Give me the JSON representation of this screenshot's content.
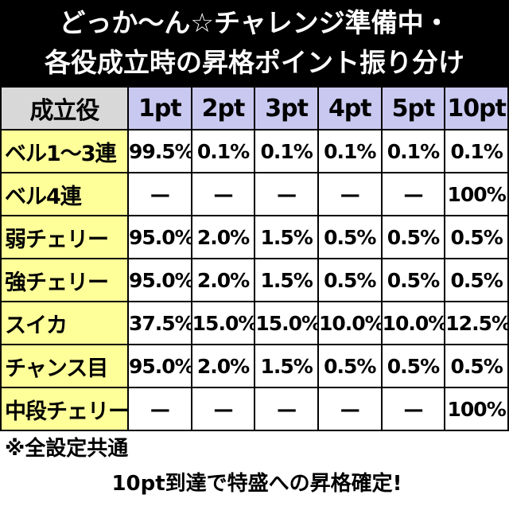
{
  "header": {
    "title_lines": [
      "どっか〜ん☆チャレンジ準備中・",
      "各役成立時の昇格ポイント振り分け"
    ]
  },
  "table": {
    "columns": [
      "成立役",
      "1pt",
      "2pt",
      "3pt",
      "4pt",
      "5pt",
      "10pt"
    ],
    "rows": [
      [
        "ベル1〜3連",
        "99.5%",
        "0.1%",
        "0.1%",
        "0.1%",
        "0.1%",
        "0.1%"
      ],
      [
        "ベル4連",
        "—",
        "—",
        "—",
        "—",
        "—",
        "100%"
      ],
      [
        "弱チェリー",
        "95.0%",
        "2.0%",
        "1.5%",
        "0.5%",
        "0.5%",
        "0.5%"
      ],
      [
        "強チェリー",
        "95.0%",
        "2.0%",
        "1.5%",
        "0.5%",
        "0.5%",
        "0.5%"
      ],
      [
        "スイカ",
        "37.5%",
        "15.0%",
        "15.0%",
        "10.0%",
        "10.0%",
        "12.5%"
      ],
      [
        "チャンス目",
        "95.0%",
        "2.0%",
        "1.5%",
        "0.5%",
        "0.5%",
        "0.5%"
      ],
      [
        "中段チェリー",
        "—",
        "—",
        "—",
        "—",
        "—",
        "100%"
      ]
    ]
  },
  "notes": [
    "※全設定共通",
    "10pt到達で特盛への昇格確定!"
  ]
}
